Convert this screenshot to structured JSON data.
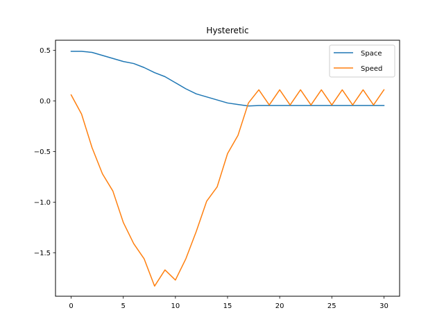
{
  "chart_data": {
    "type": "line",
    "title": "Hysteretic",
    "xlabel": "",
    "ylabel": "",
    "xlim": [
      -1.5,
      31.5
    ],
    "ylim": [
      -1.93,
      0.6
    ],
    "xticks": [
      0,
      5,
      10,
      15,
      20,
      25,
      30
    ],
    "yticks": [
      0.5,
      0.0,
      -0.5,
      -1.0,
      -1.5
    ],
    "xtick_labels": [
      "0",
      "5",
      "10",
      "15",
      "20",
      "25",
      "30"
    ],
    "ytick_labels": [
      "0.5",
      "0.0",
      "−0.5",
      "−1.0",
      "−1.5"
    ],
    "grid": false,
    "legend_position": "top-right",
    "x": [
      0,
      1,
      2,
      3,
      4,
      5,
      6,
      7,
      8,
      9,
      10,
      11,
      12,
      13,
      14,
      15,
      16,
      17,
      18,
      19,
      20,
      21,
      22,
      23,
      24,
      25,
      26,
      27,
      28,
      29,
      30
    ],
    "series": [
      {
        "name": "Space",
        "color": "#1f77b4",
        "values": [
          0.49,
          0.49,
          0.48,
          0.45,
          0.42,
          0.39,
          0.37,
          0.33,
          0.28,
          0.24,
          0.18,
          0.12,
          0.07,
          0.04,
          0.01,
          -0.02,
          -0.035,
          -0.05,
          -0.045,
          -0.045,
          -0.045,
          -0.045,
          -0.045,
          -0.045,
          -0.045,
          -0.045,
          -0.045,
          -0.045,
          -0.045,
          -0.045,
          -0.045
        ]
      },
      {
        "name": "Speed",
        "color": "#ff7f0e",
        "values": [
          0.06,
          -0.13,
          -0.46,
          -0.72,
          -0.89,
          -1.2,
          -1.41,
          -1.56,
          -1.83,
          -1.67,
          -1.77,
          -1.56,
          -1.29,
          -0.99,
          -0.85,
          -0.52,
          -0.34,
          -0.02,
          0.11,
          -0.04,
          0.11,
          -0.04,
          0.11,
          -0.04,
          0.11,
          -0.04,
          0.11,
          -0.04,
          0.11,
          -0.04,
          0.11
        ]
      }
    ]
  }
}
